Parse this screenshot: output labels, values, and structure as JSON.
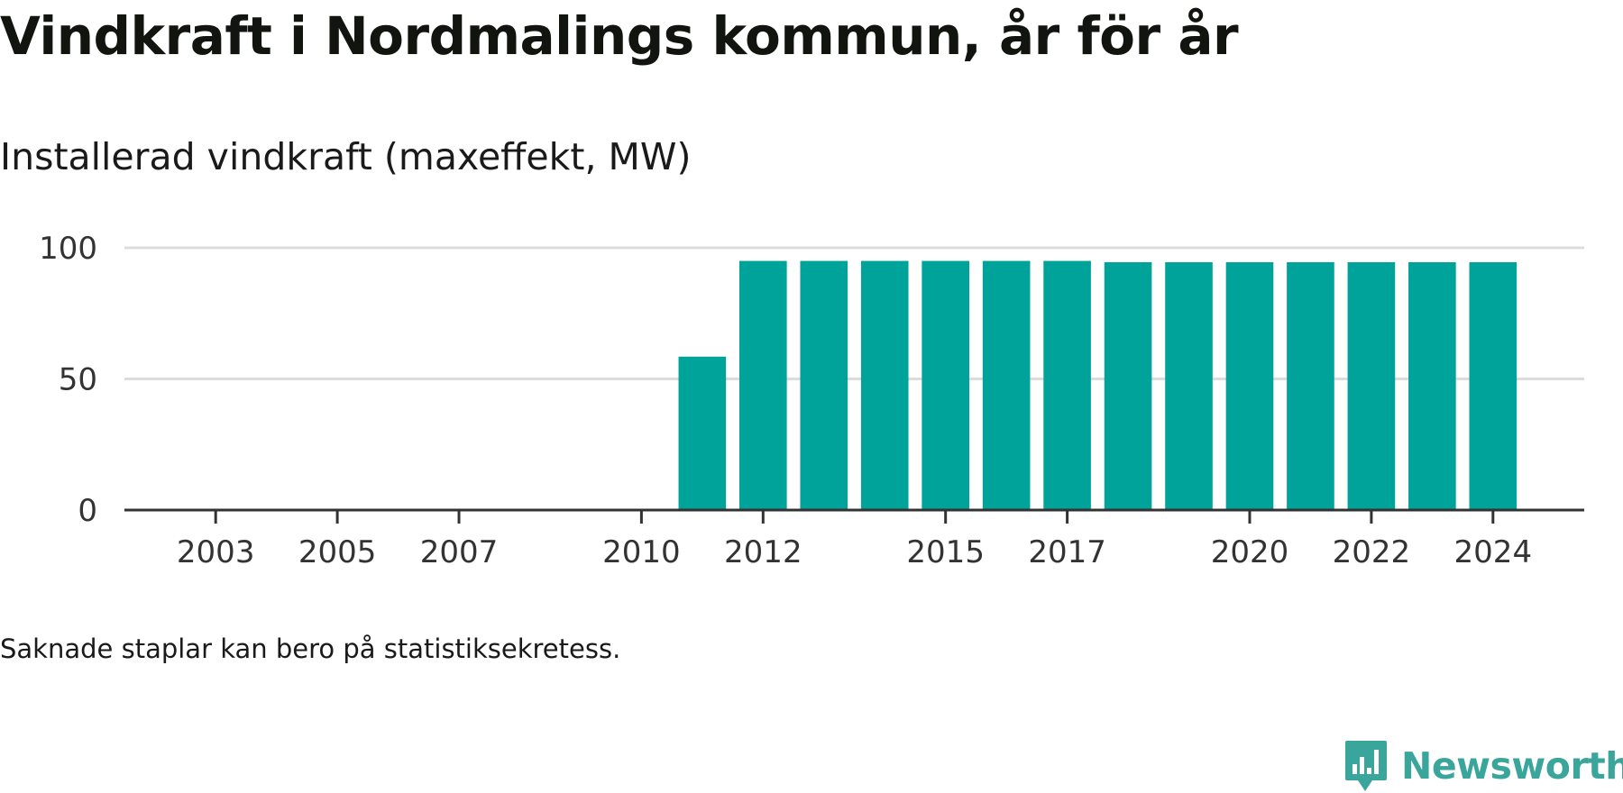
{
  "header": {
    "title": "Vindkraft i Nordmalings kommun, år för år",
    "subtitle": "Installerad vindkraft (maxeffekt, MW)"
  },
  "footer": {
    "note": "Saknade staplar kan bero på statistiksekretess.",
    "brand": "Newsworthy",
    "brand_icon": "newsworthy-logo-icon",
    "brand_color": "#3aa59a"
  },
  "chart_data": {
    "type": "bar",
    "title": "Installerad vindkraft (maxeffekt, MW)",
    "xlabel": "",
    "ylabel": "",
    "ylim": [
      0,
      100
    ],
    "yticks": [
      0,
      50,
      100
    ],
    "xticks": [
      2003,
      2005,
      2007,
      2010,
      2012,
      2015,
      2017,
      2020,
      2022,
      2024
    ],
    "x_range": [
      2001.5,
      2025.5
    ],
    "grid": true,
    "bar_color": "#00a39a",
    "categories": [
      2011,
      2012,
      2013,
      2014,
      2015,
      2016,
      2017,
      2018,
      2019,
      2020,
      2021,
      2022,
      2023,
      2024
    ],
    "values": [
      58.5,
      95,
      95,
      95,
      95,
      95,
      95,
      94.5,
      94.5,
      94.5,
      94.5,
      94.5,
      94.5,
      94.5
    ]
  }
}
